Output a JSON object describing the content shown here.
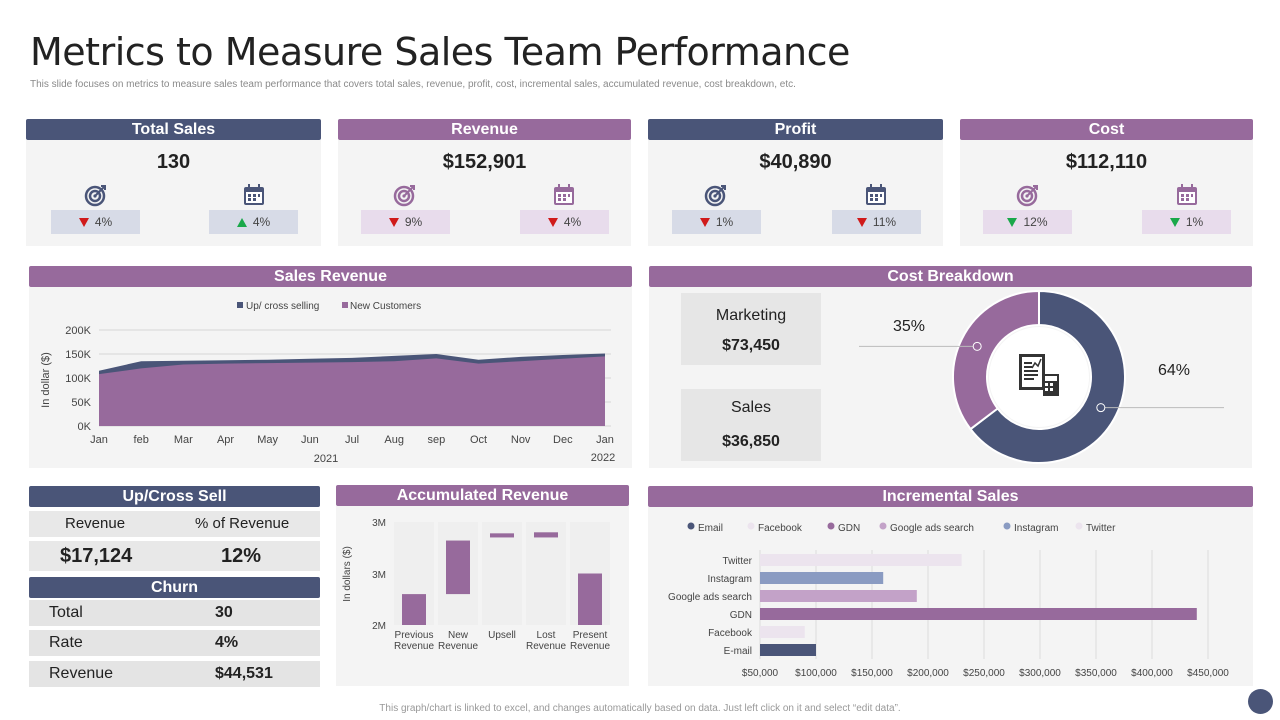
{
  "header": {
    "title": "Metrics to Measure Sales Team Performance",
    "subtitle": "This slide focuses on metrics to measure sales team performance that covers total sales, revenue, profit, cost, incremental sales, accumulated revenue, cost breakdown, etc."
  },
  "kpis": [
    {
      "title": "Total Sales",
      "value": "130",
      "left_change": "4%",
      "right_change": "4%"
    },
    {
      "title": "Revenue",
      "value": "$152,901",
      "left_change": "9%",
      "right_change": "4%"
    },
    {
      "title": "Profit",
      "value": "$40,890",
      "left_change": "1%",
      "right_change": "11%"
    },
    {
      "title": "Cost",
      "value": "$112,110",
      "left_change": "12%",
      "right_change": "1%"
    }
  ],
  "sales_revenue": {
    "title": "Sales Revenue"
  },
  "cost_breakdown": {
    "title": "Cost Breakdown",
    "marketing_label": "Marketing",
    "marketing_value": "$73,450",
    "sales_label": "Sales",
    "sales_value": "$36,850",
    "pct_small": "35%",
    "pct_large": "64%"
  },
  "upcross": {
    "title": "Up/Cross Sell",
    "col1": "Revenue",
    "col2": "% of Revenue",
    "val1": "$17,124",
    "val2": "12%"
  },
  "churn": {
    "title": "Churn",
    "rows": [
      {
        "label": "Total",
        "value": "30"
      },
      {
        "label": "Rate",
        "value": "4%"
      },
      {
        "label": "Revenue",
        "value": "$44,531"
      }
    ]
  },
  "accumulated": {
    "title": "Accumulated Revenue"
  },
  "incremental": {
    "title": "Incremental Sales"
  },
  "footer": {
    "note": "This graph/chart is linked to excel, and changes automatically based on data. Just left click on it and select “edit data”."
  },
  "colors": {
    "navy": "#4a5578",
    "purple": "#976a9c",
    "light_purple": "#e8dcec",
    "light_navy": "#d7dbe7"
  },
  "chart_data": [
    {
      "type": "area",
      "title": "Sales Revenue",
      "categories": [
        "Jan",
        "feb",
        "Mar",
        "Apr",
        "May",
        "Jun",
        "Jul",
        "Aug",
        "sep",
        "Oct",
        "Nov",
        "Dec",
        "Jan"
      ],
      "year_labels": [
        "2021",
        "2022"
      ],
      "ylabel": "In dollar ($)",
      "yticks": [
        "0K",
        "50K",
        "100K",
        "150K",
        "200K"
      ],
      "ylim": [
        0,
        200000
      ],
      "series": [
        {
          "name": "Up/ cross selling",
          "color": "#4a5578",
          "values": [
            115000,
            135000,
            136000,
            137000,
            138000,
            140000,
            142000,
            146000,
            150000,
            138000,
            144000,
            148000,
            151000
          ]
        },
        {
          "name": "New Customers",
          "color": "#976a9c",
          "values": [
            108000,
            120000,
            128000,
            130000,
            131000,
            132000,
            133000,
            135000,
            141000,
            130000,
            135000,
            140000,
            145000
          ]
        }
      ]
    },
    {
      "type": "bar",
      "title": "Accumulated Revenue",
      "subtype": "waterfall",
      "categories": [
        "Previous Revenue",
        "New Revenue",
        "Upsell",
        "Lost Revenue",
        "Present Revenue"
      ],
      "ylabel": "In dollars ($)",
      "yticks": [
        "2M",
        "3M",
        "3M"
      ],
      "ylim": [
        2000000,
        3000000
      ],
      "bars": [
        {
          "category": "Previous Revenue",
          "low": 2000000,
          "high": 2300000
        },
        {
          "category": "New Revenue",
          "low": 2300000,
          "high": 2820000
        },
        {
          "category": "Upsell",
          "low": 2850000,
          "high": 2890000
        },
        {
          "category": "Lost Revenue",
          "low": 2850000,
          "high": 2900000
        },
        {
          "category": "Present Revenue",
          "low": 2000000,
          "high": 2500000
        }
      ]
    },
    {
      "type": "bar",
      "title": "Incremental Sales",
      "orientation": "horizontal",
      "categories": [
        "Twitter",
        "Instagram",
        "Google ads search",
        "GDN",
        "Facebook",
        "E-mail"
      ],
      "values": [
        230000,
        160000,
        190000,
        440000,
        90000,
        100000
      ],
      "colors": [
        "#ece4ee",
        "#8a9bc2",
        "#c3a2c8",
        "#976a9c",
        "#ece4ee",
        "#4a5578"
      ],
      "legend": [
        {
          "name": "Email",
          "color": "#4a5578"
        },
        {
          "name": "Facebook",
          "color": "#ece4ee"
        },
        {
          "name": "GDN",
          "color": "#976a9c"
        },
        {
          "name": "Google ads search",
          "color": "#c3a2c8"
        },
        {
          "name": "Instagram",
          "color": "#8a9bc2"
        },
        {
          "name": "Twitter",
          "color": "#ece4ee"
        }
      ],
      "xticks": [
        "$50,000",
        "$100,000",
        "$150,000",
        "$200,000",
        "$250,000",
        "$300,000",
        "$350,000",
        "$400,000",
        "$450,000"
      ],
      "xlim": [
        50000,
        450000
      ]
    },
    {
      "type": "pie",
      "title": "Cost Breakdown",
      "slices": [
        {
          "name": "Marketing",
          "value": 64,
          "color": "#4a5578"
        },
        {
          "name": "Sales",
          "value": 35,
          "color": "#976a9c"
        }
      ]
    }
  ]
}
